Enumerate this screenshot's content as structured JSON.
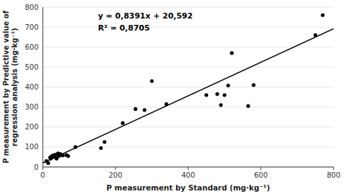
{
  "chart_data": {
    "type": "scatter",
    "xlabel": "P measurement by Standard (mg·kg⁻¹)",
    "ylabel": "P measurement by Predictive value of\nregression analysis (mg·kg⁻¹)",
    "series": [
      {
        "type": "scatter",
        "color": "#000000",
        "x": [
          10,
          15,
          20,
          22,
          25,
          28,
          32,
          35,
          38,
          42,
          45,
          48,
          55,
          65,
          70,
          90,
          160,
          170,
          220,
          255,
          280,
          300,
          340,
          450,
          480,
          490,
          500,
          510,
          520,
          565,
          580,
          750,
          770
        ],
        "values": [
          30,
          20,
          48,
          42,
          55,
          58,
          50,
          62,
          42,
          68,
          55,
          65,
          58,
          60,
          55,
          100,
          95,
          125,
          220,
          290,
          285,
          430,
          315,
          360,
          365,
          310,
          360,
          408,
          570,
          305,
          410,
          660,
          760
        ]
      },
      {
        "type": "line",
        "color": "#000000",
        "x": [
          0,
          800
        ],
        "values": [
          20.592,
          691.872
        ]
      }
    ],
    "annotations": [
      "y = 0,8391x + 20,592",
      "R² = 0,8705"
    ],
    "xlim": [
      0,
      800
    ],
    "ylim": [
      0,
      800
    ],
    "xticks": [
      0,
      200,
      400,
      600,
      800
    ],
    "yticks": [
      0,
      100,
      200,
      300,
      400,
      500,
      600,
      700,
      800
    ]
  }
}
